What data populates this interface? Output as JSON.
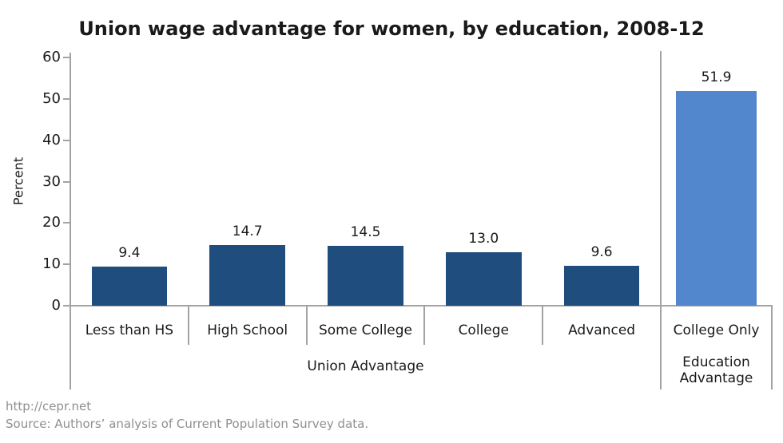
{
  "chart_data": {
    "type": "bar",
    "title": "Union wage advantage for women, by education, 2008-12",
    "ylabel": "Percent",
    "ylim": [
      0,
      60
    ],
    "yticks": [
      0,
      10,
      20,
      30,
      40,
      50,
      60
    ],
    "grid": false,
    "legend": false,
    "groups": [
      {
        "label": "Union Advantage",
        "bar_color": "#1f4e7e",
        "categories": [
          "Less than HS",
          "High School",
          "Some College",
          "College",
          "Advanced"
        ],
        "values": [
          9.4,
          14.7,
          14.5,
          13.0,
          9.6
        ],
        "value_labels": [
          "9.4",
          "14.7",
          "14.5",
          "13.0",
          "9.6"
        ]
      },
      {
        "label": "Education\nAdvantage",
        "bar_color": "#5287cd",
        "categories": [
          "College Only"
        ],
        "values": [
          51.9
        ],
        "value_labels": [
          "51.9"
        ]
      }
    ]
  },
  "colors": {
    "axis": "#a3a3a3",
    "text": "#1a1a1a",
    "footer": "#8f8f8f"
  },
  "footer": {
    "line1": "http://cepr.net",
    "line2": "Source: Authors’ analysis of Current Population Survey data."
  }
}
